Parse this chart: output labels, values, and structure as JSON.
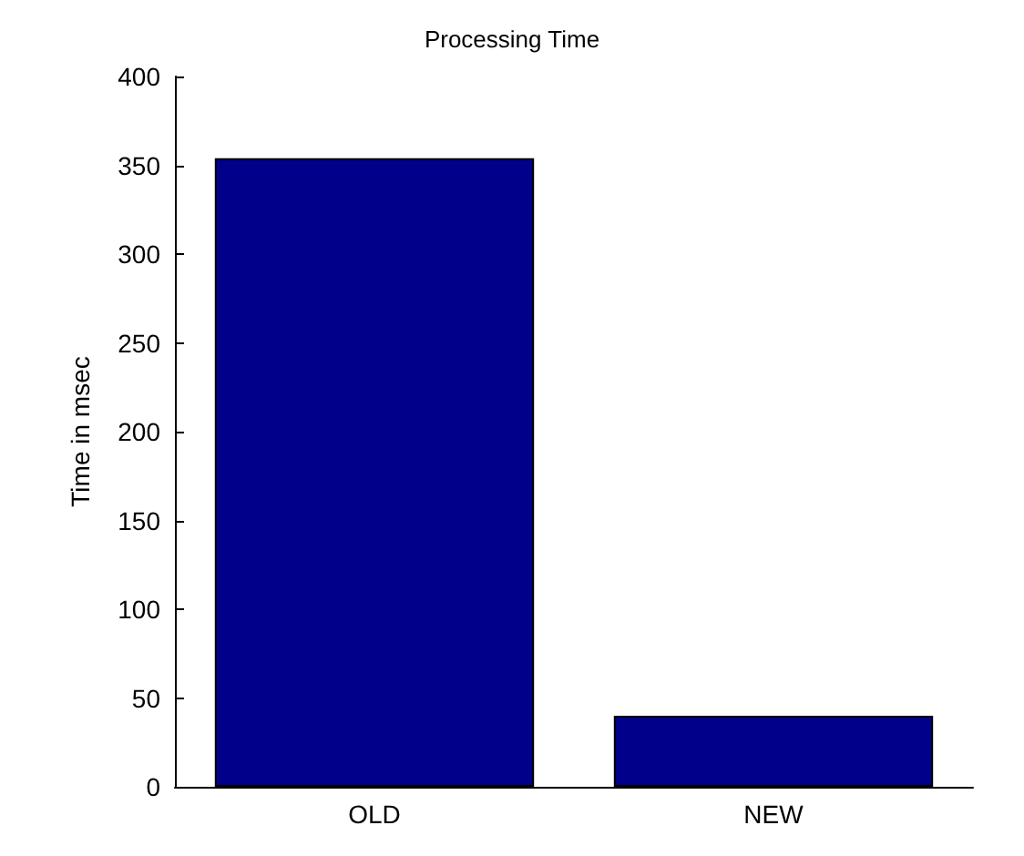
{
  "chart_data": {
    "type": "bar",
    "title": "Processing Time",
    "ylabel": "Time in msec",
    "categories": [
      "OLD",
      "NEW"
    ],
    "values": [
      354,
      40
    ],
    "color": "#00008b",
    "ylim": [
      0,
      400
    ],
    "yticks": [
      0,
      50,
      100,
      150,
      200,
      250,
      300,
      350,
      400
    ],
    "grid": false
  }
}
